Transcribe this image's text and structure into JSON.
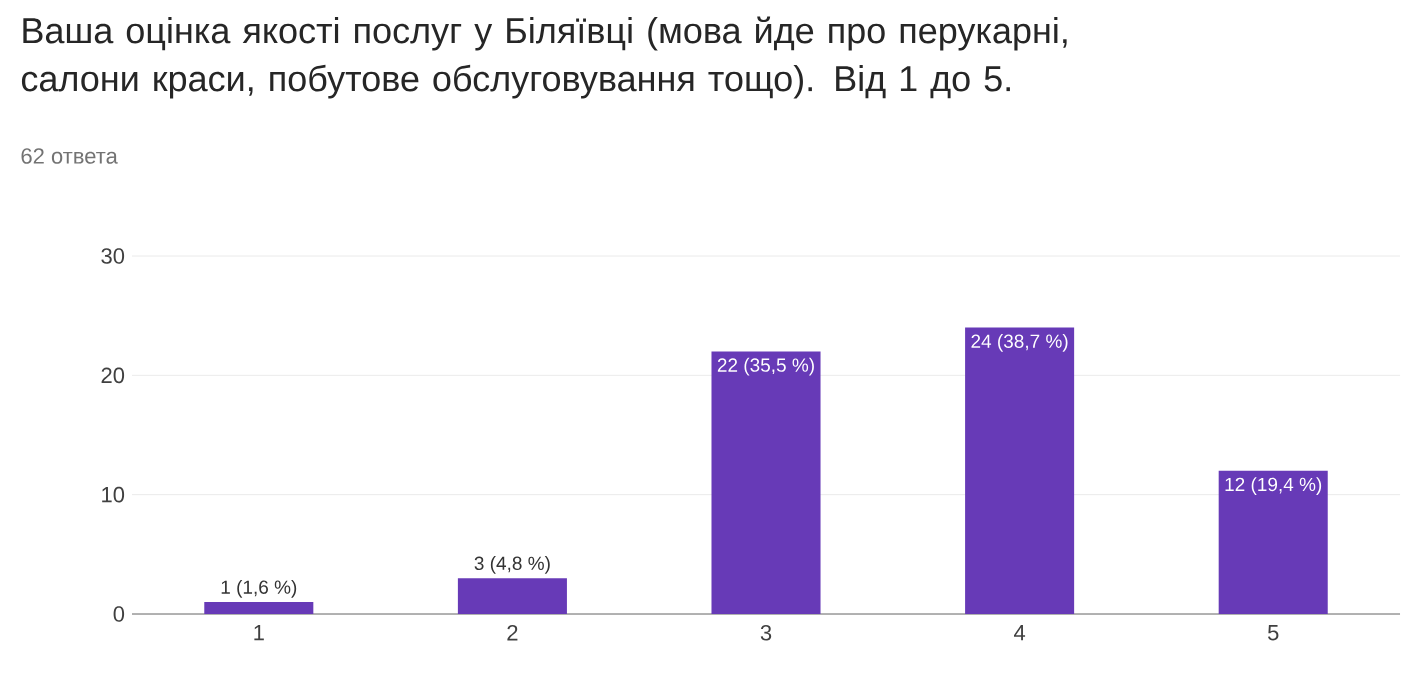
{
  "chart_data": {
    "type": "bar",
    "title": "Ваша оцінка якості послуг у Біляївці (мова йде про перукарні, салони краси, побутове обслуговування тощо). Від 1 до 5.",
    "subtitle": "62 ответа",
    "categories": [
      "1",
      "2",
      "3",
      "4",
      "5"
    ],
    "values": [
      1,
      3,
      22,
      24,
      12
    ],
    "value_labels": [
      "1 (1,6 %)",
      "3 (4,8 %)",
      "22 (35,5 %)",
      "24 (38,7 %)",
      "12 (19,4 %)"
    ],
    "color": "#673ab7",
    "ylim": [
      0,
      30
    ],
    "yticks": [
      0,
      10,
      20,
      30
    ],
    "grid": "y"
  }
}
